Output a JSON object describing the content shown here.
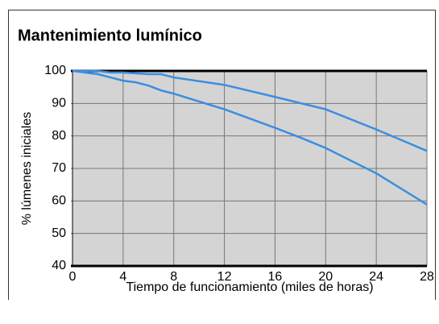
{
  "chart_data": {
    "type": "line",
    "title": "Mantenimiento lumínico",
    "x_label": "Tiempo de funcionamiento (miles de horas)",
    "y_label": "% lúmenes iniciales",
    "series": [
      {
        "color": "#3a8ee0",
        "x": [
          0,
          2,
          3,
          4,
          6,
          7,
          8,
          12,
          16,
          20,
          24,
          28
        ],
        "values": [
          100,
          100,
          99.5,
          99.5,
          99,
          99,
          98,
          95.7,
          92,
          88.2,
          82,
          75.4
        ]
      },
      {
        "color": "#3a8ee0",
        "x": [
          0,
          1,
          2,
          3,
          4,
          5,
          6,
          7,
          8,
          12,
          16,
          18,
          20,
          24,
          28
        ],
        "values": [
          100,
          99.5,
          99,
          98,
          97,
          96.5,
          95.5,
          94,
          93,
          88.2,
          82.5,
          79.5,
          76.3,
          68.5,
          58.9
        ]
      }
    ],
    "xlim": [
      0,
      28
    ],
    "xticks": [
      0,
      4,
      8,
      12,
      16,
      20,
      24,
      28
    ],
    "ylim": [
      40,
      100
    ],
    "yticks": [
      40,
      50,
      60,
      70,
      80,
      90,
      100
    ],
    "grid": true
  }
}
